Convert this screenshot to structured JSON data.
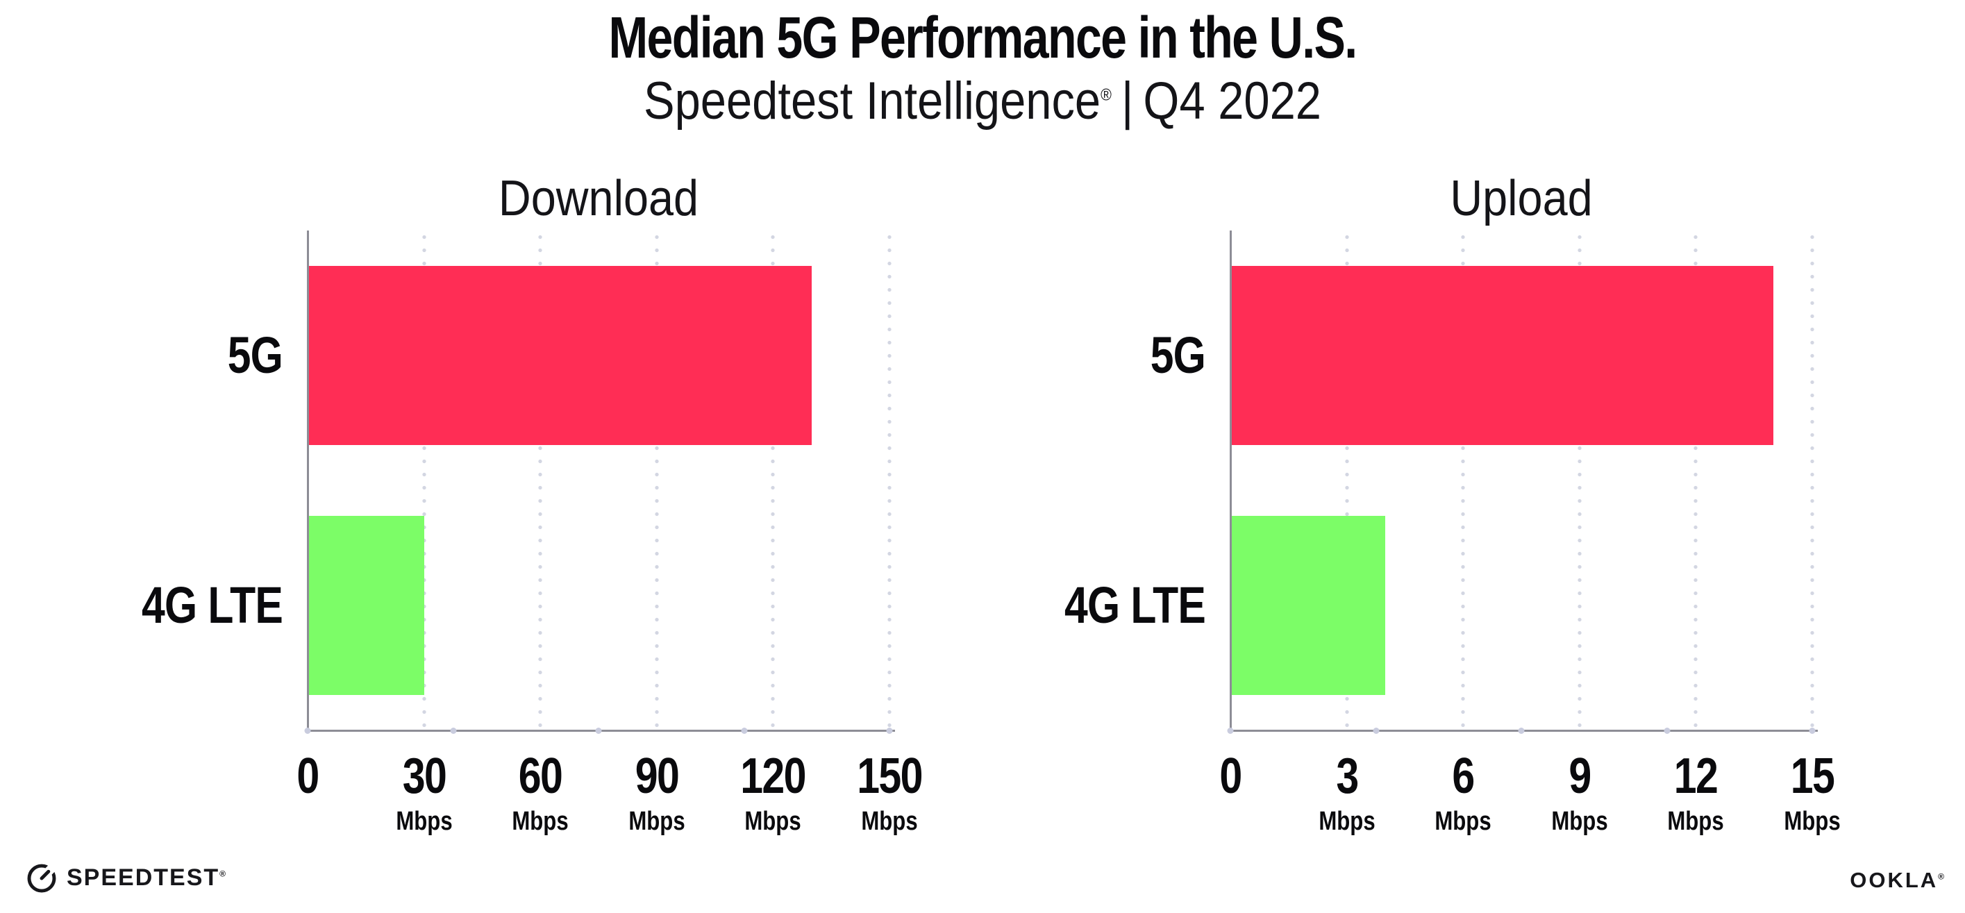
{
  "header": {
    "title": "Median 5G Performance in the U.S.",
    "subtitle": {
      "brand": "Speedtest Intelligence",
      "registered_mark": "®",
      "separator": "|",
      "period": "Q4 2022"
    }
  },
  "chart_data": [
    {
      "type": "bar",
      "orientation": "horizontal",
      "title": "Download",
      "categories": [
        "5G",
        "4G LTE"
      ],
      "values": [
        130,
        30
      ],
      "unit": "Mbps",
      "xlim": [
        0,
        150
      ],
      "xticks": [
        0,
        30,
        60,
        90,
        120,
        150
      ],
      "bar_colors": [
        "#FF2D55",
        "#7CFD67"
      ],
      "grid": "dotted-vertical-gridlines",
      "legend": "none"
    },
    {
      "type": "bar",
      "orientation": "horizontal",
      "title": "Upload",
      "categories": [
        "5G",
        "4G LTE"
      ],
      "values": [
        14,
        4
      ],
      "unit": "Mbps",
      "xlim": [
        0,
        15
      ],
      "xticks": [
        0,
        3,
        6,
        9,
        12,
        15
      ],
      "bar_colors": [
        "#FF2D55",
        "#7CFD67"
      ],
      "grid": "dotted-vertical-gridlines",
      "legend": "none"
    }
  ],
  "footer": {
    "speedtest_wordmark": "SPEEDTEST",
    "speedtest_registered_mark": "®",
    "ookla_wordmark": "OOKLA",
    "ookla_registered_mark": "®"
  },
  "colors": {
    "bar_5g": "#FF2D55",
    "bar_4g_lte": "#7CFD67",
    "axis_spine": "#8D8D96",
    "gridline_dots": "#D3D6E2",
    "text": "#0A0A0D",
    "background": "#FFFFFF"
  }
}
